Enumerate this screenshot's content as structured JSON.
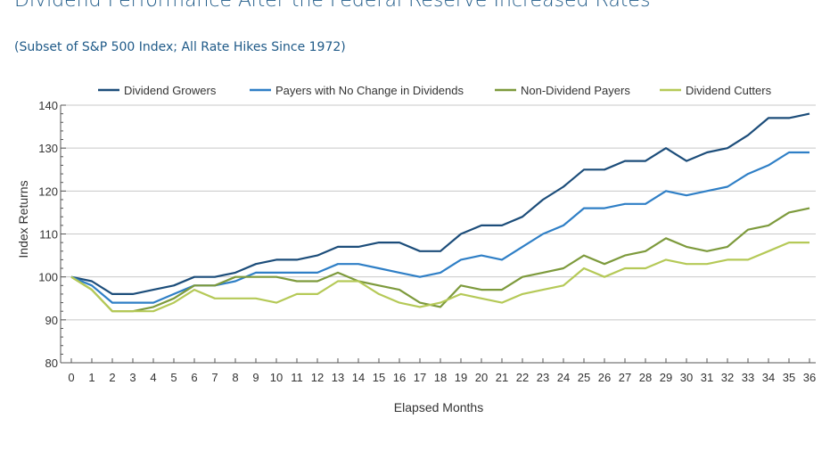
{
  "header": {
    "title": "Dividend Performance After the Federal Reserve Increased Rates",
    "subtitle": "(Subset of S&P 500 Index; All Rate Hikes Since 1972)"
  },
  "chart_data": {
    "type": "line",
    "title": "Dividend Performance After the Federal Reserve Increased Rates",
    "subtitle": "(Subset of S&P 500 Index; All Rate Hikes Since 1972)",
    "xlabel": "Elapsed Months",
    "ylabel": "Index Returns",
    "x": [
      0,
      1,
      2,
      3,
      4,
      5,
      6,
      7,
      8,
      9,
      10,
      11,
      12,
      13,
      14,
      15,
      16,
      17,
      18,
      19,
      20,
      21,
      22,
      23,
      24,
      25,
      26,
      27,
      28,
      29,
      30,
      31,
      32,
      33,
      34,
      35,
      36
    ],
    "ylim": [
      80,
      140
    ],
    "yticks": [
      80,
      90,
      100,
      110,
      120,
      130,
      140
    ],
    "grid": true,
    "legend_position": "top",
    "series": [
      {
        "name": "Dividend Growers",
        "color": "#1c4d7a",
        "values": [
          100,
          99,
          96,
          96,
          97,
          98,
          100,
          100,
          101,
          103,
          104,
          104,
          105,
          107,
          107,
          108,
          108,
          106,
          106,
          110,
          112,
          112,
          114,
          118,
          121,
          125,
          125,
          127,
          127,
          130,
          127,
          129,
          130,
          133,
          137,
          137,
          138
        ]
      },
      {
        "name": "Payers with No Change in Dividends",
        "color": "#2f7fc6",
        "values": [
          100,
          98,
          94,
          94,
          94,
          96,
          98,
          98,
          99,
          101,
          101,
          101,
          101,
          103,
          103,
          102,
          101,
          100,
          101,
          104,
          105,
          104,
          107,
          110,
          112,
          116,
          116,
          117,
          117,
          120,
          119,
          120,
          121,
          124,
          126,
          129,
          129
        ]
      },
      {
        "name": "Non-Dividend Payers",
        "color": "#7d9a3c",
        "values": [
          100,
          97,
          92,
          92,
          93,
          95,
          98,
          98,
          100,
          100,
          100,
          99,
          99,
          101,
          99,
          98,
          97,
          94,
          93,
          98,
          97,
          97,
          100,
          101,
          102,
          105,
          103,
          105,
          106,
          109,
          107,
          106,
          107,
          111,
          112,
          115,
          116
        ]
      },
      {
        "name": "Dividend Cutters",
        "color": "#b5c957",
        "values": [
          100,
          97,
          92,
          92,
          92,
          94,
          97,
          95,
          95,
          95,
          94,
          96,
          96,
          99,
          99,
          96,
          94,
          93,
          94,
          96,
          95,
          94,
          96,
          97,
          98,
          102,
          100,
          102,
          102,
          104,
          103,
          103,
          104,
          104,
          106,
          108,
          108
        ]
      }
    ]
  }
}
